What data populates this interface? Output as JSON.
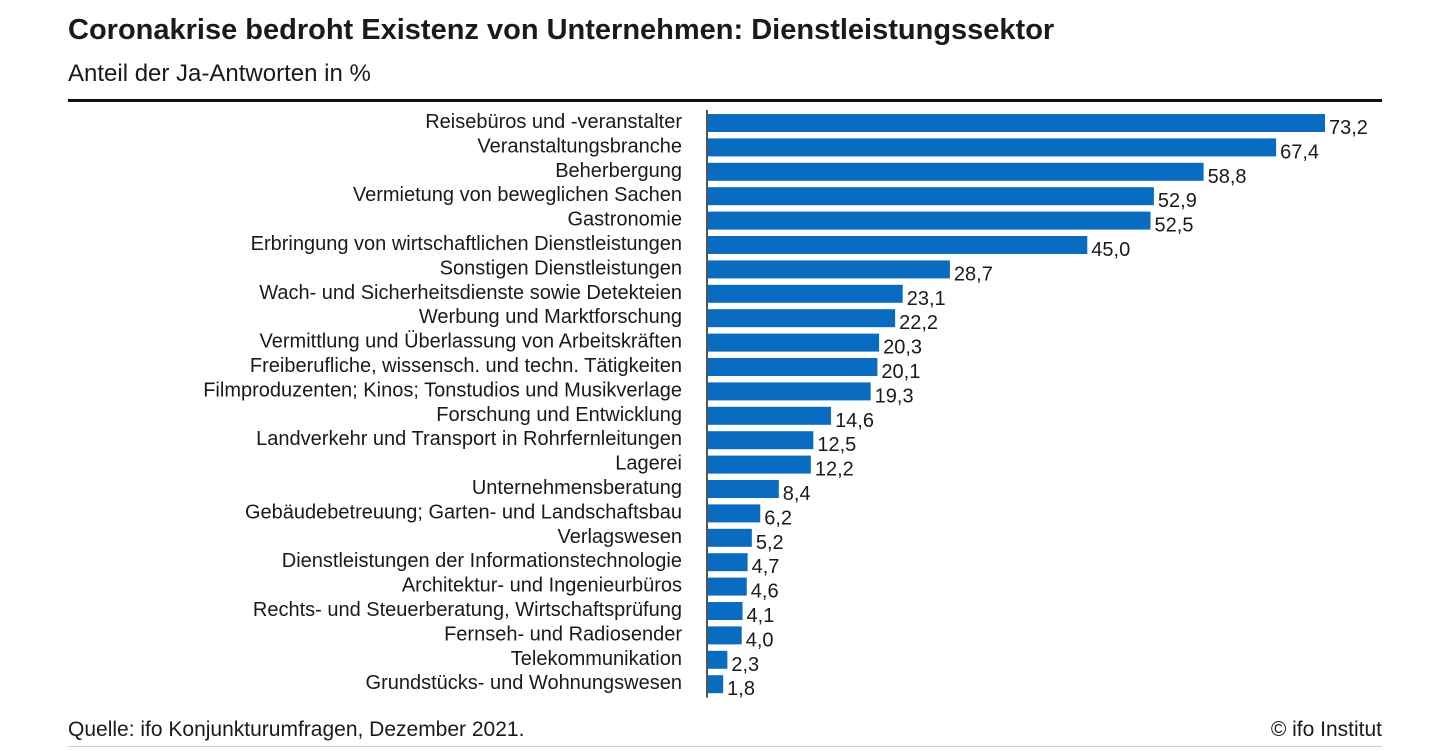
{
  "header": {
    "title": "Coronakrise bedroht Existenz von Unternehmen: Dienstleistungssektor",
    "subtitle": "Anteil der Ja-Antworten in %"
  },
  "footer": {
    "source": "Quelle: ifo Konjunkturumfragen, Dezember 2021.",
    "copyright": "© ifo Institut"
  },
  "chart_data": {
    "type": "bar",
    "orientation": "horizontal",
    "title": "Coronakrise bedroht Existenz von Unternehmen: Dienstleistungssektor",
    "subtitle": "Anteil der Ja-Antworten in %",
    "bar_color": "#0a6cc0",
    "grid": false,
    "legend": "none",
    "xlim": [
      0,
      73.2
    ],
    "categories": [
      "Reisebüros und -veranstalter",
      "Veranstaltungsbranche",
      "Beherbergung",
      "Vermietung von beweglichen Sachen",
      "Gastronomie",
      "Erbringung von wirtschaftlichen Dienstleistungen",
      "Sonstigen Dienstleistungen",
      "Wach- und Sicherheitsdienste sowie Detekteien",
      "Werbung und Marktforschung",
      "Vermittlung und Überlassung von Arbeitskräften",
      "Freiberufliche, wissensch. und techn. Tätigkeiten",
      "Filmproduzenten; Kinos; Tonstudios und Musikverlage",
      "Forschung und Entwicklung",
      "Landverkehr und Transport in Rohrfernleitungen",
      "Lagerei",
      "Unternehmensberatung",
      "Gebäudebetreuung; Garten- und Landschaftsbau",
      "Verlagswesen",
      "Dienstleistungen der Informationstechnologie",
      "Architektur- und Ingenieurbüros",
      "Rechts- und Steuerberatung, Wirtschaftsprüfung",
      "Fernseh- und Radiosender",
      "Telekommunikation",
      "Grundstücks- und Wohnungswesen"
    ],
    "values": [
      73.2,
      67.4,
      58.8,
      52.9,
      52.5,
      45.0,
      28.7,
      23.1,
      22.2,
      20.3,
      20.1,
      19.3,
      14.6,
      12.5,
      12.2,
      8.4,
      6.2,
      5.2,
      4.7,
      4.6,
      4.1,
      4.0,
      2.3,
      1.8
    ],
    "value_labels": [
      "73,2",
      "67,4",
      "58,8",
      "52,9",
      "52,5",
      "45,0",
      "28,7",
      "23,1",
      "22,2",
      "20,3",
      "20,1",
      "19,3",
      "14,6",
      "12,5",
      "12,2",
      "8,4",
      "6,2",
      "5,2",
      "4,7",
      "4,6",
      "4,1",
      "4,0",
      "2,3",
      "1,8"
    ]
  }
}
